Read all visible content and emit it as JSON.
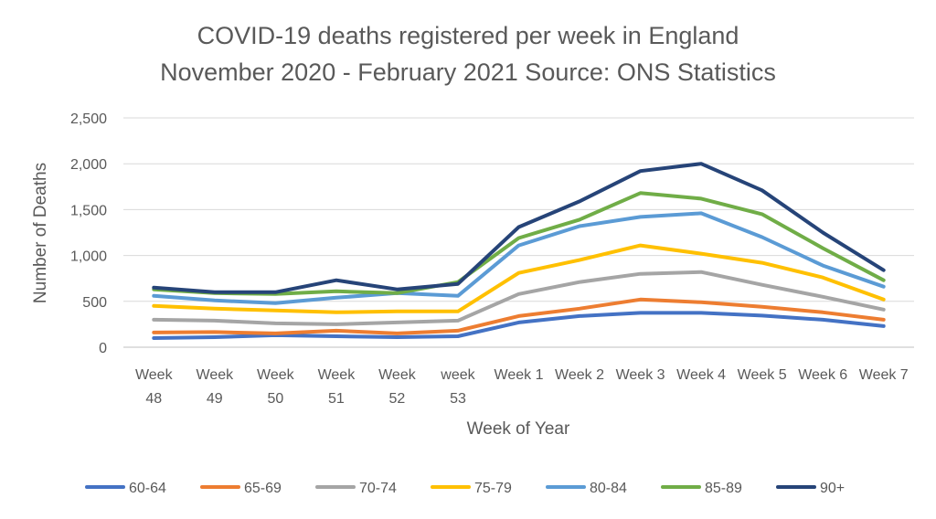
{
  "chart_data": {
    "type": "line",
    "title": [
      "COVID-19 deaths registered per week in England",
      "November 2020 - February 2021 Source: ONS Statistics"
    ],
    "xlabel": "Week of Year",
    "ylabel": "Number of Deaths",
    "ylim": [
      0,
      2500
    ],
    "yticks": [
      0,
      500,
      1000,
      1500,
      2000,
      2500
    ],
    "ytick_labels": [
      "0",
      "500",
      "1,000",
      "1,500",
      "2,000",
      "2,500"
    ],
    "grid": true,
    "legend_position": "bottom",
    "categories": [
      "Week 48",
      "Week 49",
      "Week 50",
      "Week 51",
      "Week 52",
      "week 53",
      "Week 1",
      "Week 2",
      "Week 3",
      "Week 4",
      "Week 5",
      "Week 6",
      "Week 7"
    ],
    "category_labels": [
      [
        "Week",
        "48"
      ],
      [
        "Week",
        "49"
      ],
      [
        "Week",
        "50"
      ],
      [
        "Week",
        "51"
      ],
      [
        "Week",
        "52"
      ],
      [
        "week",
        "53"
      ],
      [
        "Week 1"
      ],
      [
        "Week 2"
      ],
      [
        "Week 3"
      ],
      [
        "Week 4"
      ],
      [
        "Week 5"
      ],
      [
        "Week 6"
      ],
      [
        "Week 7"
      ]
    ],
    "series": [
      {
        "name": "60-64",
        "color": "#4472C4",
        "values": [
          100,
          110,
          130,
          120,
          110,
          120,
          270,
          340,
          375,
          375,
          345,
          300,
          230
        ]
      },
      {
        "name": "65-69",
        "color": "#ED7D31",
        "values": [
          160,
          165,
          150,
          180,
          150,
          180,
          340,
          420,
          520,
          490,
          440,
          380,
          300
        ]
      },
      {
        "name": "70-74",
        "color": "#A5A5A5",
        "values": [
          300,
          290,
          260,
          250,
          270,
          290,
          580,
          710,
          800,
          820,
          680,
          550,
          410
        ]
      },
      {
        "name": "75-79",
        "color": "#FFC000",
        "values": [
          450,
          420,
          400,
          380,
          390,
          390,
          810,
          950,
          1110,
          1020,
          920,
          760,
          520
        ]
      },
      {
        "name": "80-84",
        "color": "#5B9BD5",
        "values": [
          560,
          510,
          480,
          540,
          590,
          560,
          1110,
          1320,
          1420,
          1460,
          1200,
          890,
          660
        ]
      },
      {
        "name": "85-89",
        "color": "#70AD47",
        "values": [
          630,
          590,
          580,
          610,
          590,
          710,
          1190,
          1390,
          1680,
          1620,
          1450,
          1080,
          730
        ]
      },
      {
        "name": "90+",
        "color": "#264478",
        "values": [
          650,
          600,
          600,
          730,
          630,
          690,
          1310,
          1590,
          1920,
          2000,
          1710,
          1250,
          840
        ]
      }
    ]
  }
}
